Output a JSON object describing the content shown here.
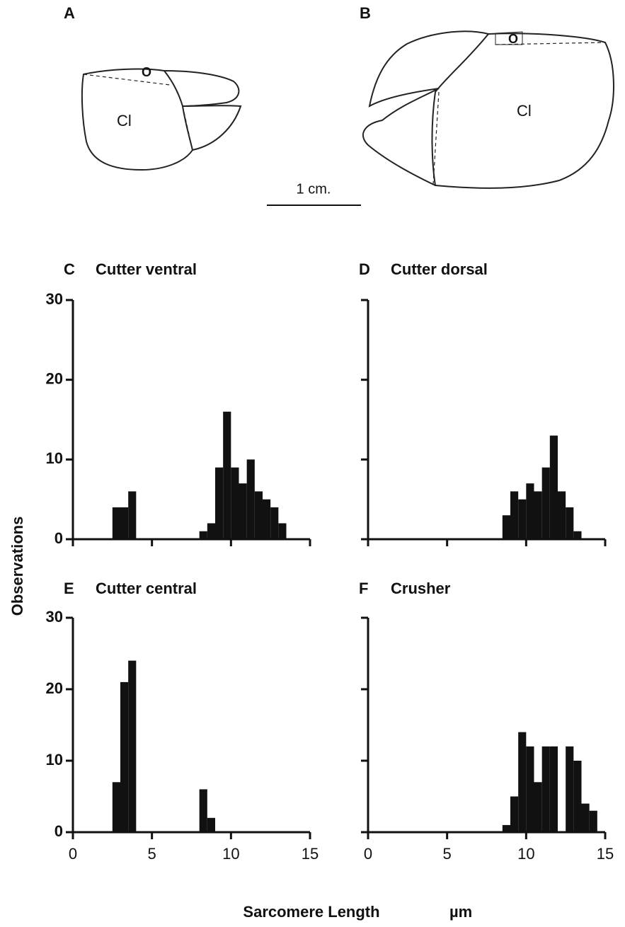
{
  "figure": {
    "panel_a": "A",
    "panel_b": "B",
    "label_o_a": "O",
    "label_cl_a": "Cl",
    "label_o_b": "O",
    "label_cl_b": "Cl",
    "scale_bar": "1 cm.",
    "ylabel": "Observations",
    "xlabel": "Sarcomere Length",
    "xunit": "µm"
  },
  "chart_data": [
    {
      "type": "histogram",
      "panel": "C",
      "title": "Cutter ventral",
      "color": "#111",
      "bins": [
        0,
        0.5,
        1,
        1.5,
        2,
        2.5,
        3,
        3.5,
        4,
        4.5,
        5,
        5.5,
        6,
        6.5,
        7,
        7.5,
        8,
        8.5,
        9,
        9.5,
        10,
        10.5,
        11,
        11.5,
        12,
        12.5,
        13,
        13.5,
        14,
        14.5,
        15
      ],
      "counts": [
        0,
        0,
        0,
        0,
        0,
        4,
        4,
        6,
        0,
        0,
        0,
        0,
        0,
        0,
        0,
        0,
        1,
        2,
        9,
        16,
        9,
        7,
        10,
        6,
        5,
        4,
        2,
        0,
        0,
        0
      ],
      "xlim": [
        0,
        15
      ],
      "ylim": [
        0,
        30
      ],
      "xticks": [
        0,
        5,
        10,
        15
      ],
      "yticks": [
        0,
        10,
        20,
        30
      ],
      "xtick_labels": false,
      "ytick_labels": true
    },
    {
      "type": "histogram",
      "panel": "D",
      "title": "Cutter dorsal",
      "color": "#111",
      "bins": [
        0,
        0.5,
        1,
        1.5,
        2,
        2.5,
        3,
        3.5,
        4,
        4.5,
        5,
        5.5,
        6,
        6.5,
        7,
        7.5,
        8,
        8.5,
        9,
        9.5,
        10,
        10.5,
        11,
        11.5,
        12,
        12.5,
        13,
        13.5,
        14,
        14.5,
        15
      ],
      "counts": [
        0,
        0,
        0,
        0,
        0,
        0,
        0,
        0,
        0,
        0,
        0,
        0,
        0,
        0,
        0,
        0,
        0,
        3,
        6,
        5,
        7,
        6,
        9,
        13,
        6,
        4,
        1,
        0,
        0,
        0
      ],
      "xlim": [
        0,
        15
      ],
      "ylim": [
        0,
        30
      ],
      "xticks": [
        0,
        5,
        10,
        15
      ],
      "yticks": [
        0,
        10,
        20,
        30
      ],
      "xtick_labels": false,
      "ytick_labels": false
    },
    {
      "type": "histogram",
      "panel": "E",
      "title": "Cutter central",
      "color": "#111",
      "bins": [
        0,
        0.5,
        1,
        1.5,
        2,
        2.5,
        3,
        3.5,
        4,
        4.5,
        5,
        5.5,
        6,
        6.5,
        7,
        7.5,
        8,
        8.5,
        9,
        9.5,
        10,
        10.5,
        11,
        11.5,
        12,
        12.5,
        13,
        13.5,
        14,
        14.5,
        15
      ],
      "counts": [
        0,
        0,
        0,
        0,
        0,
        7,
        21,
        24,
        0,
        0,
        0,
        0,
        0,
        0,
        0,
        0,
        6,
        2,
        0,
        0,
        0,
        0,
        0,
        0,
        0,
        0,
        0,
        0,
        0,
        0
      ],
      "xlim": [
        0,
        15
      ],
      "ylim": [
        0,
        30
      ],
      "xticks": [
        0,
        5,
        10,
        15
      ],
      "yticks": [
        0,
        10,
        20,
        30
      ],
      "xtick_labels": true,
      "ytick_labels": true
    },
    {
      "type": "histogram",
      "panel": "F",
      "title": "Crusher",
      "color": "#111",
      "bins": [
        0,
        0.5,
        1,
        1.5,
        2,
        2.5,
        3,
        3.5,
        4,
        4.5,
        5,
        5.5,
        6,
        6.5,
        7,
        7.5,
        8,
        8.5,
        9,
        9.5,
        10,
        10.5,
        11,
        11.5,
        12,
        12.5,
        13,
        13.5,
        14,
        14.5,
        15
      ],
      "counts": [
        0,
        0,
        0,
        0,
        0,
        0,
        0,
        0,
        0,
        0,
        0,
        0,
        0,
        0,
        0,
        0,
        0,
        1,
        5,
        14,
        12,
        7,
        12,
        12,
        0,
        12,
        10,
        4,
        3,
        0
      ],
      "xlim": [
        0,
        15
      ],
      "ylim": [
        0,
        30
      ],
      "xticks": [
        0,
        5,
        10,
        15
      ],
      "yticks": [
        0,
        10,
        20,
        30
      ],
      "xtick_labels": true,
      "ytick_labels": false
    }
  ]
}
